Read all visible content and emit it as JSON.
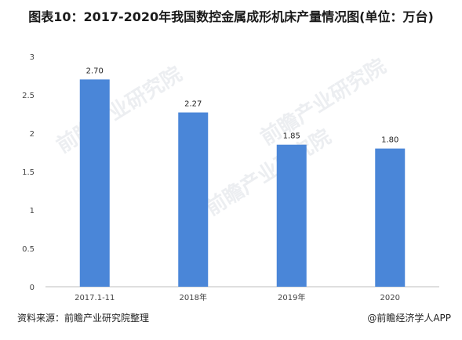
{
  "title": "图表10：2017-2020年我国数控金属成形机床产量情况图(单位：万台)",
  "source": "资料来源：前瞻产业研究院整理",
  "brand": "@前瞻经济学人APP",
  "watermark": "前瞻产业研究院",
  "colors": {
    "bar": "#4a86d8",
    "axis": "#bfbfbf"
  },
  "chart_data": {
    "type": "bar",
    "title": "图表10：2017-2020年我国数控金属成形机床产量情况图(单位：万台)",
    "xlabel": "",
    "ylabel": "",
    "categories": [
      "2017.1-11",
      "2018年",
      "2019年",
      "2020"
    ],
    "values": [
      2.7,
      2.27,
      1.85,
      1.8
    ],
    "value_labels": [
      "2.70",
      "2.27",
      "1.85",
      "1.80"
    ],
    "ylim": [
      0,
      3
    ],
    "yticks": [
      "0",
      "0.5",
      "1",
      "1.5",
      "2",
      "2.5",
      "3"
    ],
    "grid": false,
    "legend": "none"
  }
}
